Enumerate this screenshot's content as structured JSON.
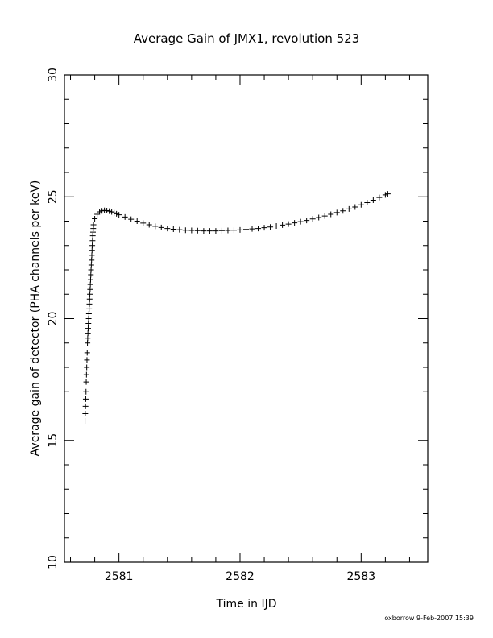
{
  "chart_data": {
    "type": "scatter",
    "title": "Average Gain of JMX1, revolution 523",
    "xlabel": "Time in IJD",
    "ylabel": "Average gain of detector (PHA channels per keV)",
    "xlim": [
      2580.55,
      2583.55
    ],
    "ylim": [
      10,
      30
    ],
    "x_ticks": [
      2581,
      2582,
      2583
    ],
    "y_ticks": [
      10,
      15,
      20,
      25,
      30
    ],
    "marker": "+",
    "grid": false,
    "legend": "none",
    "series": [
      {
        "x": [
          2580.72,
          2580.722,
          2580.724,
          2580.726,
          2580.728,
          2580.73,
          2580.732,
          2580.734,
          2580.736,
          2580.738,
          2580.74,
          2580.742,
          2580.744,
          2580.746,
          2580.748,
          2580.75,
          2580.752,
          2580.754,
          2580.756,
          2580.758,
          2580.76,
          2580.762,
          2580.764,
          2580.766,
          2580.768,
          2580.77,
          2580.772,
          2580.774,
          2580.776,
          2580.778,
          2580.78,
          2580.782,
          2580.784,
          2580.786,
          2580.788,
          2580.79,
          2580.8,
          2580.82,
          2580.84,
          2580.86,
          2580.88,
          2580.9,
          2580.92,
          2580.94,
          2580.96,
          2580.98,
          2581.0,
          2581.05,
          2581.1,
          2581.15,
          2581.2,
          2581.25,
          2581.3,
          2581.35,
          2581.4,
          2581.45,
          2581.5,
          2581.55,
          2581.6,
          2581.65,
          2581.7,
          2581.75,
          2581.8,
          2581.85,
          2581.9,
          2581.95,
          2582.0,
          2582.05,
          2582.1,
          2582.15,
          2582.2,
          2582.25,
          2582.3,
          2582.35,
          2582.4,
          2582.45,
          2582.5,
          2582.55,
          2582.6,
          2582.65,
          2582.7,
          2582.75,
          2582.8,
          2582.85,
          2582.9,
          2582.95,
          2583.0,
          2583.05,
          2583.1,
          2583.15,
          2583.2,
          2583.22
        ],
        "y": [
          15.8,
          16.1,
          16.4,
          16.7,
          17.0,
          17.4,
          17.7,
          18.0,
          18.3,
          18.6,
          19.0,
          19.2,
          19.4,
          19.6,
          19.8,
          20.0,
          20.2,
          20.4,
          20.6,
          20.8,
          21.0,
          21.2,
          21.4,
          21.6,
          21.8,
          22.0,
          22.2,
          22.4,
          22.6,
          22.8,
          23.0,
          23.2,
          23.4,
          23.55,
          23.7,
          23.85,
          24.1,
          24.28,
          24.38,
          24.42,
          24.44,
          24.43,
          24.41,
          24.38,
          24.34,
          24.3,
          24.26,
          24.17,
          24.08,
          24.0,
          23.92,
          23.85,
          23.79,
          23.74,
          23.7,
          23.67,
          23.65,
          23.63,
          23.62,
          23.61,
          23.6,
          23.6,
          23.6,
          23.61,
          23.62,
          23.63,
          23.64,
          23.66,
          23.68,
          23.7,
          23.73,
          23.76,
          23.8,
          23.84,
          23.88,
          23.93,
          23.98,
          24.03,
          24.09,
          24.15,
          24.21,
          24.28,
          24.35,
          24.42,
          24.5,
          24.58,
          24.67,
          24.76,
          24.86,
          24.97,
          25.08,
          25.12
        ]
      }
    ]
  },
  "footer": "oxborrow  9-Feb-2007 15:39"
}
